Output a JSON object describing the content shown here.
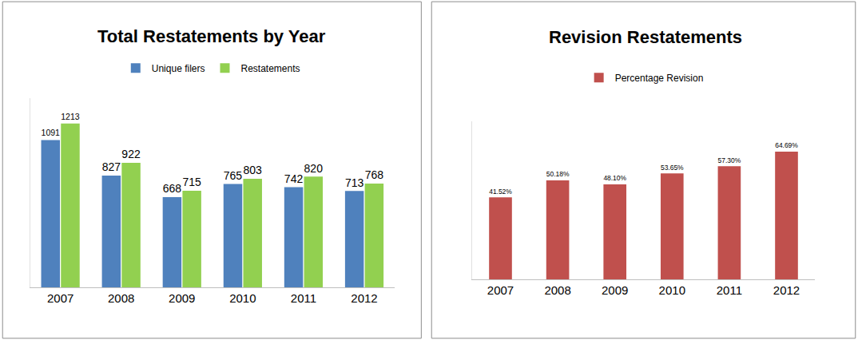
{
  "chart_data": [
    {
      "type": "bar",
      "title": "Total Restatements by Year",
      "categories": [
        "2007",
        "2008",
        "2009",
        "2010",
        "2011",
        "2012"
      ],
      "series": [
        {
          "name": "Unique filers",
          "color": "#4f81bd",
          "values": [
            1091,
            827,
            668,
            765,
            742,
            713
          ]
        },
        {
          "name": "Restatements",
          "color": "#92d050",
          "values": [
            1213,
            922,
            715,
            803,
            820,
            768
          ]
        }
      ],
      "ylim": [
        0,
        1400
      ],
      "yticks": [],
      "data_labels": true,
      "tick_labels": "x",
      "legend": "top"
    },
    {
      "type": "bar",
      "title": "Revision Restatements",
      "categories": [
        "2007",
        "2008",
        "2009",
        "2010",
        "2011",
        "2012"
      ],
      "series": [
        {
          "name": "Percentage Revision",
          "color": "#c0504d",
          "values": [
            41.52,
            50.18,
            48.1,
            53.65,
            57.3,
            64.69
          ],
          "value_labels": [
            "41.52%",
            "50.18%",
            "48.10%",
            "53.65%",
            "57.30%",
            "64.69%"
          ]
        }
      ],
      "ylim": [
        0,
        80
      ],
      "yticks": [],
      "data_labels": true,
      "tick_labels": "x",
      "legend": "top"
    }
  ]
}
